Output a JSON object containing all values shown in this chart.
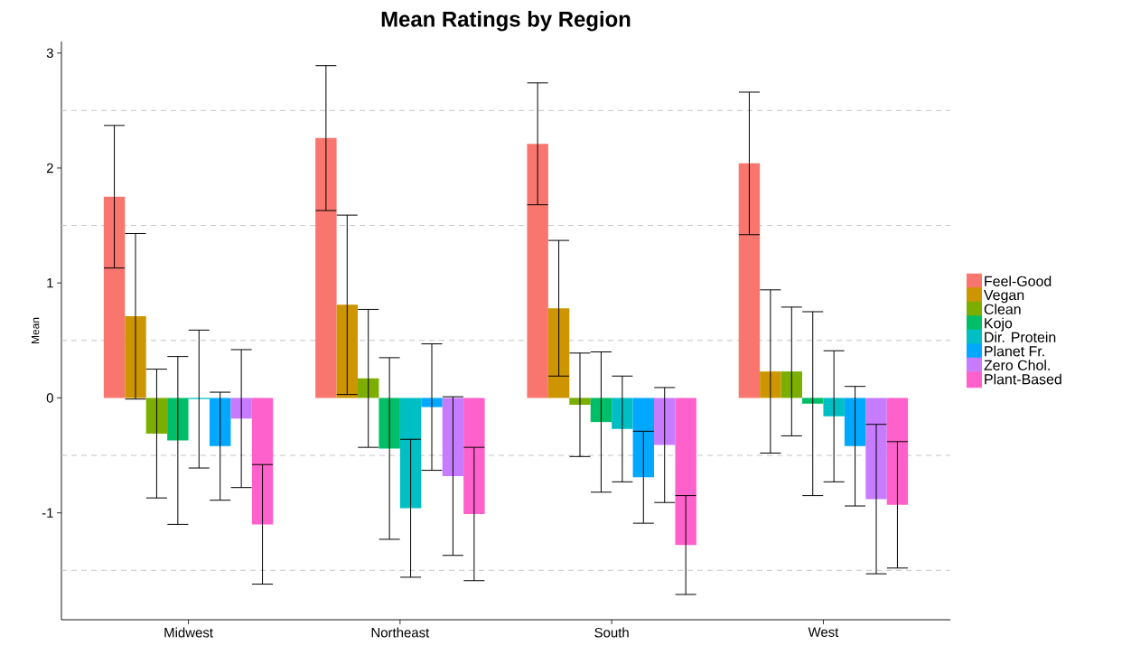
{
  "chart_data": {
    "type": "bar",
    "title": "Mean Ratings by Region",
    "ylabel": "Mean",
    "categories": [
      "Midwest",
      "Northeast",
      "South",
      "West"
    ],
    "ylim": [
      -1.93,
      3.1
    ],
    "yticks": [
      -1,
      0,
      1,
      2,
      3
    ],
    "legend": "right",
    "ref_lines": [
      {
        "axis": "y",
        "value": -1.5,
        "color": "#bebebe",
        "line_style": "dashed"
      },
      {
        "axis": "y",
        "value": -0.5,
        "color": "#bebebe",
        "line_style": "dashed"
      },
      {
        "axis": "y",
        "value": 0.5,
        "color": "#bebebe",
        "line_style": "dashed"
      },
      {
        "axis": "y",
        "value": 1.5,
        "color": "#bebebe",
        "line_style": "dashed"
      },
      {
        "axis": "y",
        "value": 2.5,
        "color": "#bebebe",
        "line_style": "dashed"
      }
    ],
    "series": [
      {
        "name": "Feel-Good",
        "color": "#f8766d",
        "values": [
          1.75,
          2.26,
          2.21,
          2.04
        ],
        "errors": [
          0.62,
          0.63,
          0.53,
          0.62
        ]
      },
      {
        "name": "Vegan",
        "color": "#cd9600",
        "values": [
          0.71,
          0.81,
          0.78,
          0.23
        ],
        "errors": [
          0.72,
          0.78,
          0.59,
          0.71
        ]
      },
      {
        "name": "Clean",
        "color": "#7cae00",
        "values": [
          -0.31,
          0.17,
          -0.06,
          0.23
        ],
        "errors": [
          0.56,
          0.6,
          0.45,
          0.56
        ]
      },
      {
        "name": "Kojo",
        "color": "#00be67",
        "values": [
          -0.37,
          -0.44,
          -0.21,
          -0.05
        ],
        "errors": [
          0.73,
          0.79,
          0.61,
          0.8
        ]
      },
      {
        "name": "Dir. Protein",
        "color": "#00bfc4",
        "values": [
          -0.01,
          -0.96,
          -0.27,
          -0.16
        ],
        "errors": [
          0.6,
          0.6,
          0.46,
          0.57
        ]
      },
      {
        "name": "Planet Fr.",
        "color": "#00a9ff",
        "values": [
          -0.42,
          -0.08,
          -0.69,
          -0.42
        ],
        "errors": [
          0.47,
          0.55,
          0.4,
          0.52
        ]
      },
      {
        "name": "Zero Chol.",
        "color": "#c77cff",
        "values": [
          -0.18,
          -0.68,
          -0.41,
          -0.88
        ],
        "errors": [
          0.6,
          0.69,
          0.5,
          0.65
        ]
      },
      {
        "name": "Plant-Based",
        "color": "#ff61cc",
        "values": [
          -1.1,
          -1.01,
          -1.28,
          -0.93
        ],
        "errors": [
          0.52,
          0.58,
          0.43,
          0.55
        ]
      }
    ]
  }
}
